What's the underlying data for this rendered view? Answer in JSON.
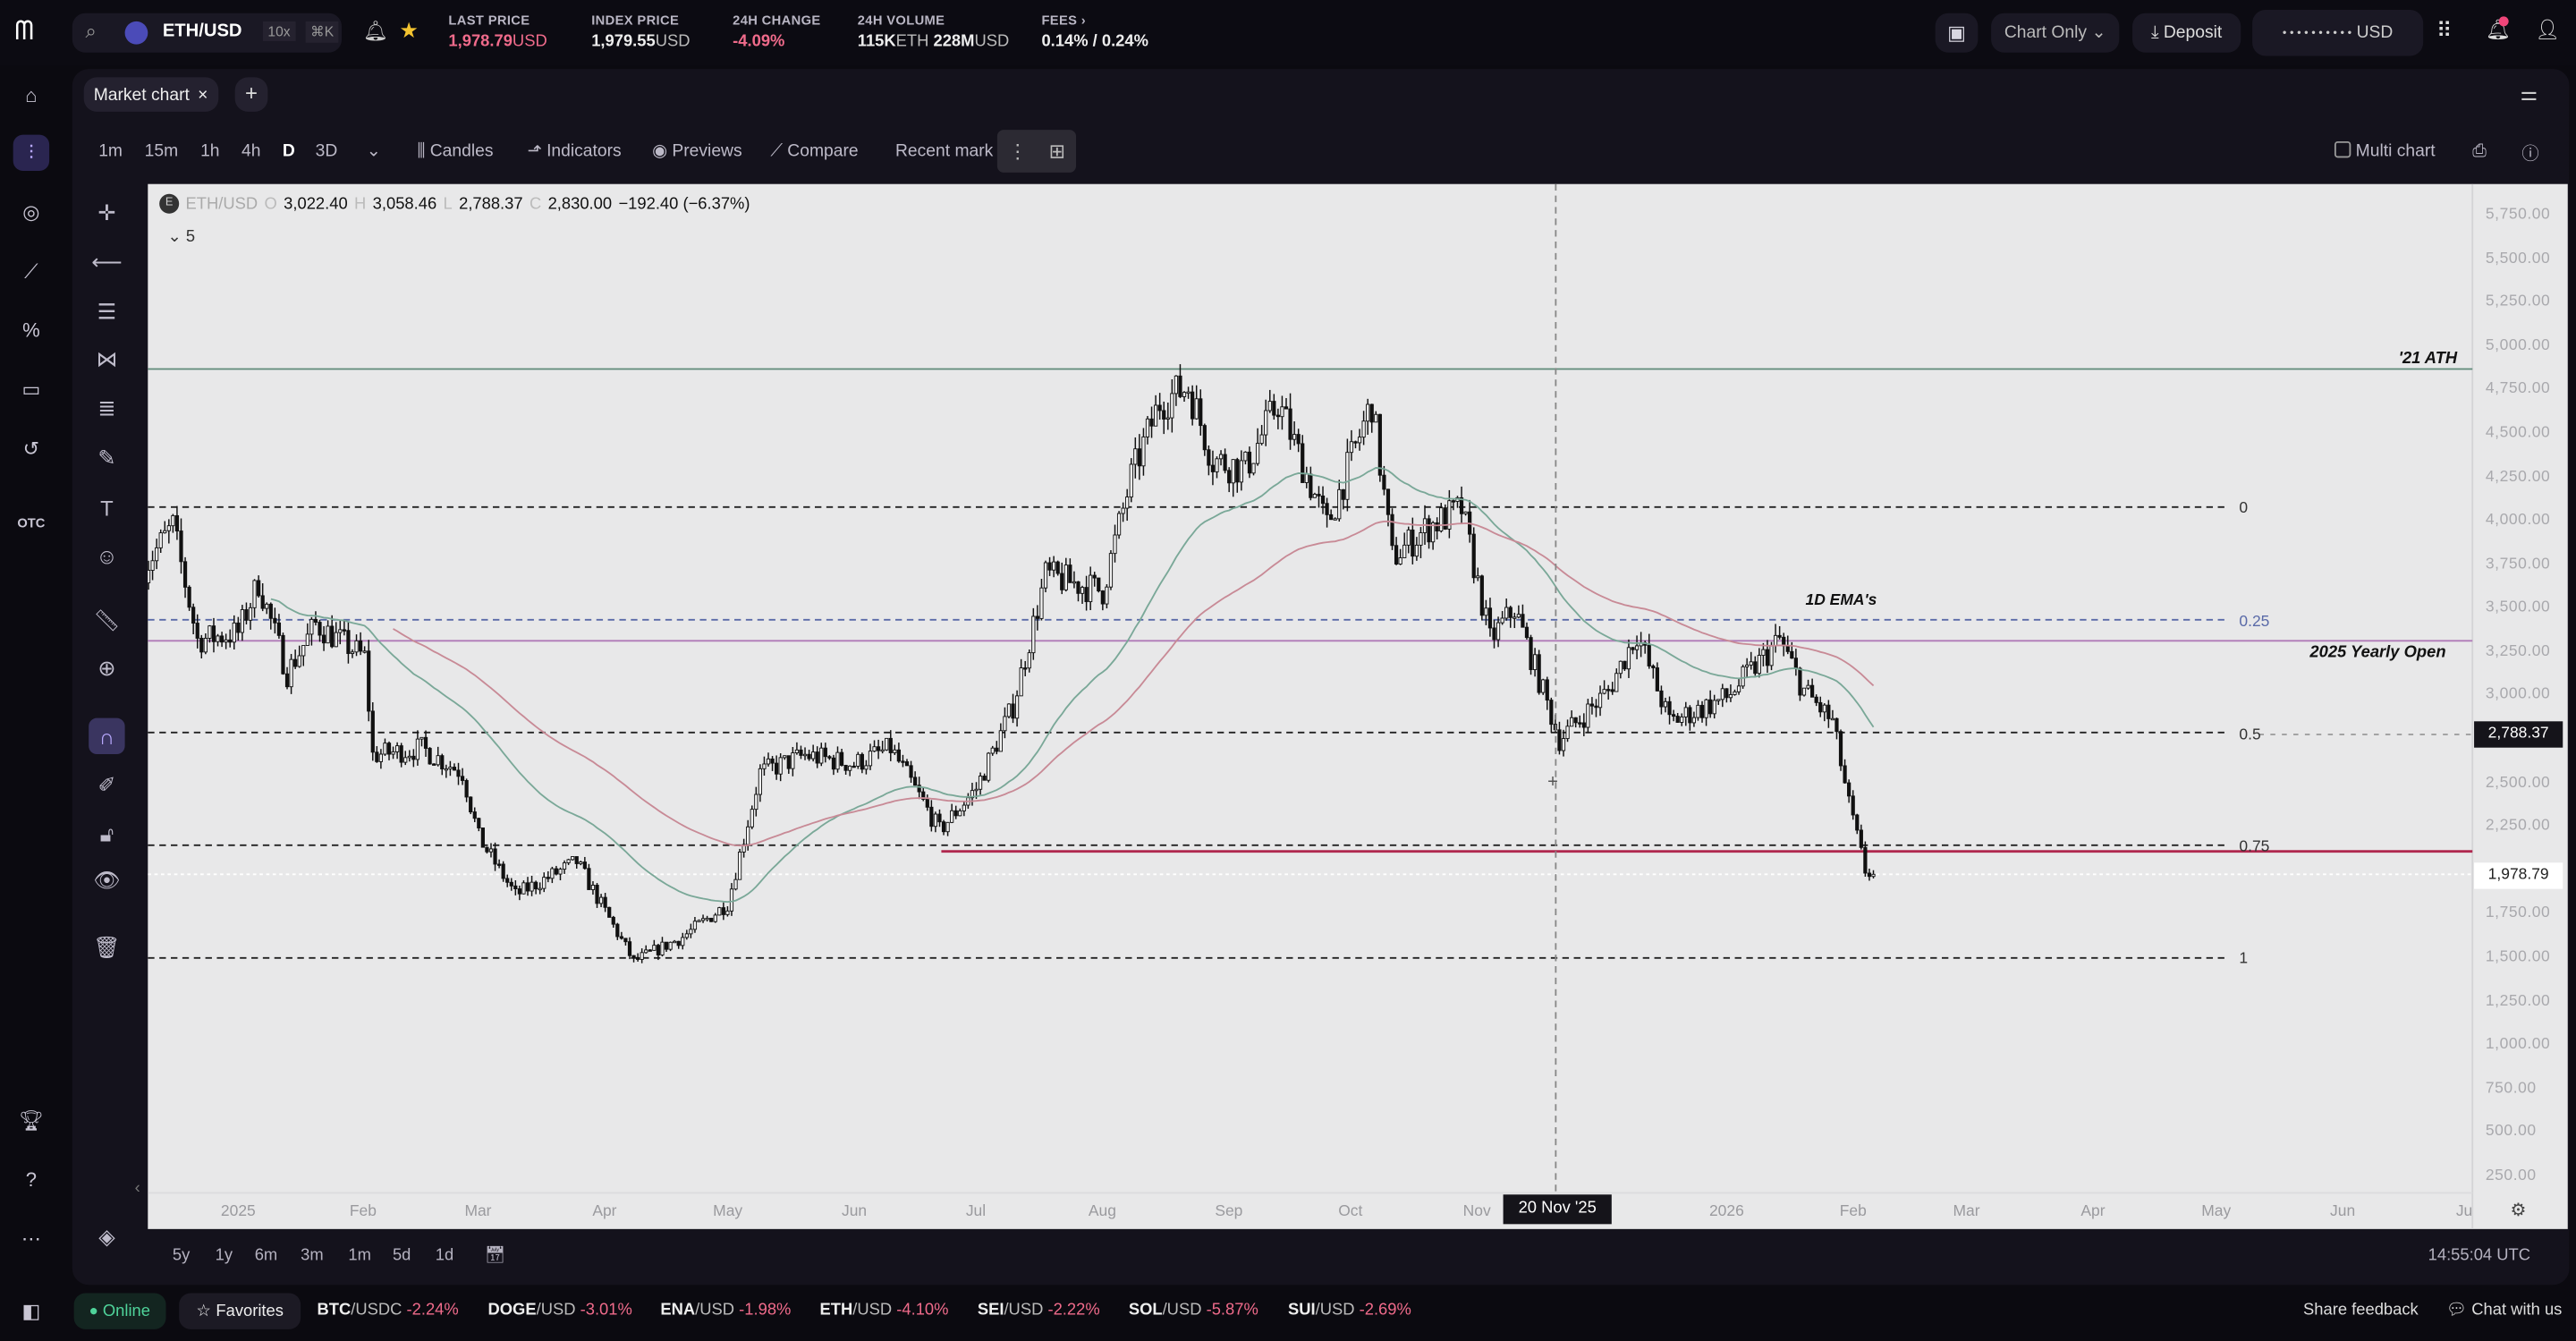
{
  "topbar": {
    "pair": "ETH/USD",
    "leverage": "10x",
    "shortcut": "⌘K",
    "stats": [
      {
        "label": "LAST PRICE",
        "value": "1,978.79",
        "unit": "USD",
        "negative": true
      },
      {
        "label": "INDEX PRICE",
        "value": "1,979.55",
        "unit": "USD",
        "negative": false
      },
      {
        "label": "24H CHANGE",
        "value": "-4.09%",
        "unit": "",
        "negative": true
      },
      {
        "label": "24H VOLUME",
        "value": "115K",
        "unit": "ETH",
        "value2": "228M",
        "unit2": "USD"
      },
      {
        "label": "FEES",
        "value": "0.14% / 0.24%",
        "unit": ""
      }
    ],
    "chart_only": "Chart Only",
    "deposit": "Deposit",
    "balance": "• • • • • • • • • •",
    "balance_unit": "USD"
  },
  "nav": {
    "otc": "OTC"
  },
  "tabs": {
    "active": "Market chart"
  },
  "toolbar": {
    "intervals": [
      "1m",
      "15m",
      "1h",
      "4h",
      "D",
      "3D"
    ],
    "active_interval": "D",
    "candles": "Candles",
    "indicators": "Indicators",
    "previews": "Previews",
    "compare": "Compare",
    "recent": "Recent mark",
    "multi_chart": "Multi chart"
  },
  "legend": {
    "symbol": "ETH/USD",
    "o": "3,022.40",
    "h": "3,058.46",
    "l": "2,788.37",
    "c": "2,830.00",
    "change": "−192.40 (−6.37%)",
    "indicators_count": "5"
  },
  "annotations": {
    "ath": "'21 ATH",
    "yearly_open": "2025 Yearly Open",
    "ema": "1D EMA's"
  },
  "chart_data": {
    "type": "candlestick",
    "symbol": "ETH/USD",
    "interval": "1D",
    "yticks": [
      "5,750.00",
      "5,500.00",
      "5,250.00",
      "5,000.00",
      "4,750.00",
      "4,500.00",
      "4,250.00",
      "4,000.00",
      "3,750.00",
      "3,500.00",
      "3,250.00",
      "3,000.00",
      "2,500.00",
      "2,250.00",
      "1,750.00",
      "1,500.00",
      "1,250.00",
      "1,000.00",
      "750.00",
      "500.00",
      "250.00"
    ],
    "ylim": [
      250,
      5750
    ],
    "xticks": [
      "2025",
      "Feb",
      "Mar",
      "Apr",
      "May",
      "Jun",
      "Jul",
      "Aug",
      "Sep",
      "Oct",
      "Nov",
      "2026",
      "Feb",
      "Mar",
      "Apr",
      "May",
      "Jun",
      "Ju"
    ],
    "crosshair_label": "20 Nov '25",
    "crosshair_price_label": "2,788.37",
    "last_price_label": "1,978.79",
    "close_series": [
      [
        "2024-12-09",
        3740
      ],
      [
        "2024-12-16",
        3970
      ],
      [
        "2024-12-22",
        3320
      ],
      [
        "2025-01-01",
        3360
      ],
      [
        "2025-01-06",
        3650
      ],
      [
        "2025-01-13",
        3130
      ],
      [
        "2025-01-20",
        3410
      ],
      [
        "2025-02-01",
        3220
      ],
      [
        "2025-02-03",
        2660
      ],
      [
        "2025-02-15",
        2700
      ],
      [
        "2025-02-25",
        2560
      ],
      [
        "2025-03-01",
        2190
      ],
      [
        "2025-03-10",
        1860
      ],
      [
        "2025-03-25",
        2050
      ],
      [
        "2025-04-08",
        1480
      ],
      [
        "2025-04-20",
        1620
      ],
      [
        "2025-05-01",
        1810
      ],
      [
        "2025-05-09",
        2560
      ],
      [
        "2025-05-20",
        2660
      ],
      [
        "2025-06-01",
        2610
      ],
      [
        "2025-06-10",
        2700
      ],
      [
        "2025-06-22",
        2230
      ],
      [
        "2025-07-01",
        2470
      ],
      [
        "2025-07-10",
        2940
      ],
      [
        "2025-07-18",
        3690
      ],
      [
        "2025-08-01",
        3600
      ],
      [
        "2025-08-08",
        4250
      ],
      [
        "2025-08-15",
        4680
      ],
      [
        "2025-08-22",
        4770
      ],
      [
        "2025-08-28",
        4350
      ],
      [
        "2025-09-05",
        4300
      ],
      [
        "2025-09-13",
        4680
      ],
      [
        "2025-09-25",
        3970
      ],
      [
        "2025-10-06",
        4680
      ],
      [
        "2025-10-11",
        3790
      ],
      [
        "2025-10-20",
        3970
      ],
      [
        "2025-10-28",
        4070
      ],
      [
        "2025-11-04",
        3320
      ],
      [
        "2025-11-10",
        3500
      ],
      [
        "2025-11-21",
        2750
      ],
      [
        "2025-12-03",
        3030
      ],
      [
        "2025-12-10",
        3360
      ],
      [
        "2025-12-18",
        2850
      ],
      [
        "2026-01-01",
        2990
      ],
      [
        "2026-01-14",
        3320
      ],
      [
        "2026-01-20",
        3030
      ],
      [
        "2026-01-27",
        2850
      ],
      [
        "2026-01-31",
        2380
      ],
      [
        "2026-02-04",
        2000
      ],
      [
        "2026-02-06",
        1979
      ]
    ],
    "levels": [
      {
        "name": "'21 ATH",
        "price": 4870,
        "color": "#5e8a78",
        "style": "solid"
      },
      {
        "name": "fib 0",
        "label": "0",
        "price": 4080,
        "color": "#222",
        "style": "dashed"
      },
      {
        "name": "fib 0.25",
        "label": "0.25",
        "price": 3435,
        "color": "#5a6aa8",
        "style": "dashed"
      },
      {
        "name": "2025 Yearly Open",
        "price": 3315,
        "color": "#b07ab8",
        "style": "solid"
      },
      {
        "name": "fib 0.5",
        "label": "0.5",
        "price": 2790,
        "color": "#222",
        "style": "dashed"
      },
      {
        "name": "fib 0.75",
        "label": "0.75",
        "price": 2145,
        "color": "#222",
        "style": "dashed"
      },
      {
        "name": "support",
        "price": 2110,
        "color": "#b0284f",
        "style": "solid"
      },
      {
        "name": "fib 1",
        "label": "1",
        "price": 1500,
        "color": "#222",
        "style": "dashed"
      }
    ],
    "ema_colors": [
      "#7aa898",
      "#c88a96"
    ],
    "grid": false
  },
  "ranges": [
    "5y",
    "1y",
    "6m",
    "3m",
    "1m",
    "5d",
    "1d"
  ],
  "clock": "14:55:04 UTC",
  "status": {
    "online": "Online",
    "favorites": "Favorites",
    "tickers": [
      {
        "base": "BTC",
        "quote": "/USDC",
        "chg": "-2.24%"
      },
      {
        "base": "DOGE",
        "quote": "/USD",
        "chg": "-3.01%"
      },
      {
        "base": "ENA",
        "quote": "/USD",
        "chg": "-1.98%"
      },
      {
        "base": "ETH",
        "quote": "/USD",
        "chg": "-4.10%"
      },
      {
        "base": "SEI",
        "quote": "/USD",
        "chg": "-2.22%"
      },
      {
        "base": "SOL",
        "quote": "/USD",
        "chg": "-5.87%"
      },
      {
        "base": "SUI",
        "quote": "/USD",
        "chg": "-2.69%"
      }
    ],
    "feedback": "Share feedback",
    "chat": "Chat with us"
  }
}
